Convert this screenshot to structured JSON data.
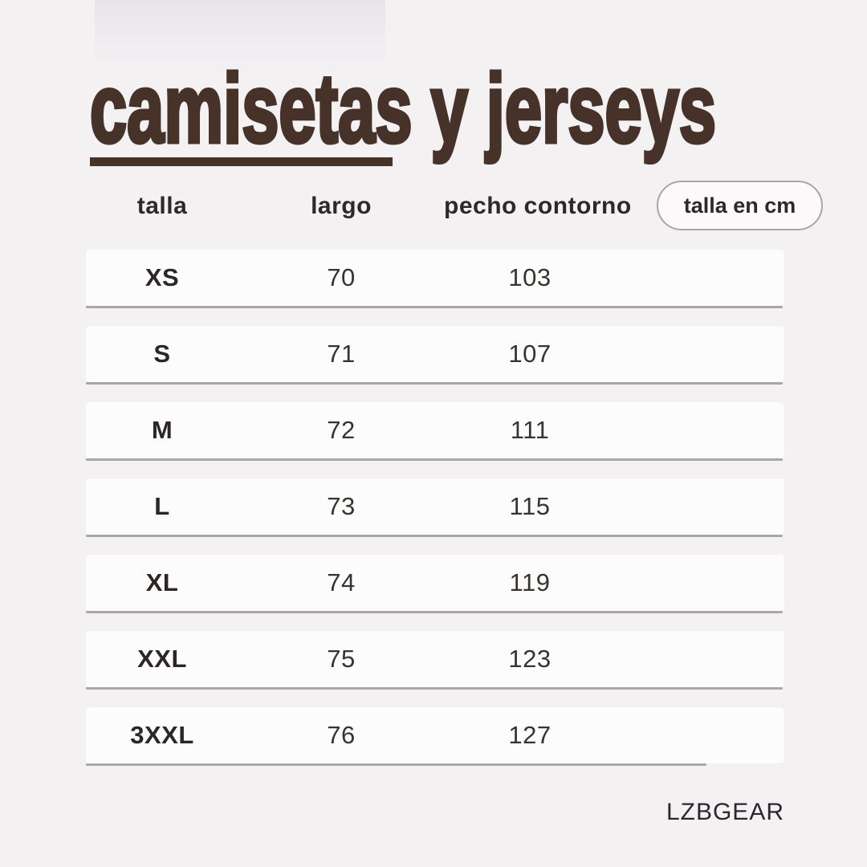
{
  "chart_data": {
    "type": "table",
    "title": "camisetas y jerseys",
    "unit_label": "talla en cm",
    "columns": [
      "talla",
      "largo",
      "pecho contorno"
    ],
    "rows": [
      [
        "XS",
        70,
        103
      ],
      [
        "S",
        71,
        107
      ],
      [
        "M",
        72,
        111
      ],
      [
        "L",
        73,
        115
      ],
      [
        "XL",
        74,
        119
      ],
      [
        "XXL",
        75,
        123
      ],
      [
        "3XXL",
        76,
        127
      ]
    ]
  },
  "page": {
    "title": "camisetas y jerseys",
    "brand": "LZBGEAR"
  },
  "header": {
    "badge": "talla en cm"
  },
  "table": {
    "rows": [
      {
        "talla": "XS",
        "largo": "70",
        "pecho": "103"
      },
      {
        "talla": "S",
        "largo": "71",
        "pecho": "107"
      },
      {
        "talla": "M",
        "largo": "72",
        "pecho": "111"
      },
      {
        "talla": "L",
        "largo": "73",
        "pecho": "115"
      },
      {
        "talla": "XL",
        "largo": "74",
        "pecho": "119"
      },
      {
        "talla": "XXL",
        "largo": "75",
        "pecho": "123"
      },
      {
        "talla": "3XXL",
        "largo": "76",
        "pecho": "127"
      }
    ]
  },
  "colors": {
    "background": "#f4f1f3",
    "accent_brown": "#47322a",
    "row_background": "#fdfcfd",
    "row_border": "#a9a6a9",
    "text_dark": "#2e2927"
  }
}
